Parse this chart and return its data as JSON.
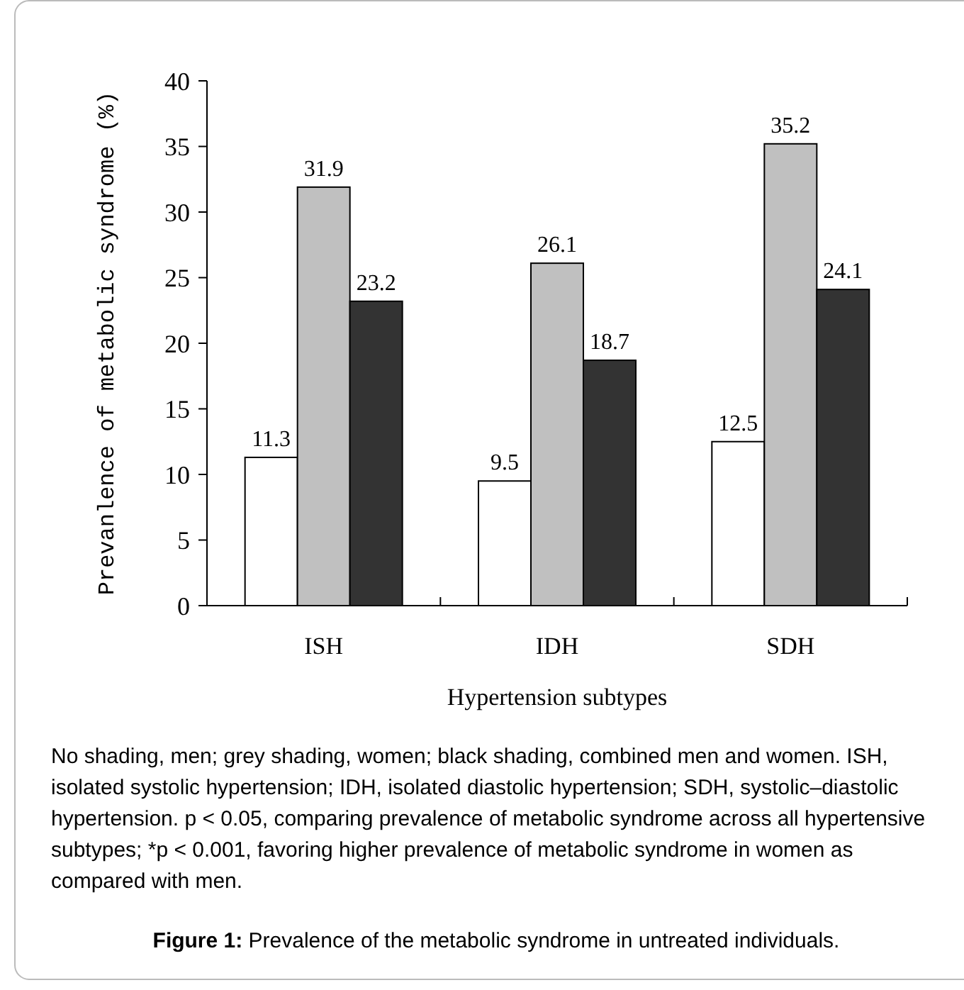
{
  "chart_data": {
    "type": "bar",
    "title": "Figure 1: Prevalence of the metabolic syndrome in untreated individuals.",
    "xlabel": "Hypertension subtypes",
    "ylabel": "Prevanlence of metabolic syndrome (%)",
    "categories": [
      "ISH",
      "IDH",
      "SDH"
    ],
    "series": [
      {
        "color": "#ffffff",
        "values": [
          11.3,
          9.5,
          12.5
        ]
      },
      {
        "color": "#c0c0c0",
        "values": [
          31.9,
          26.1,
          35.2
        ]
      },
      {
        "color": "#333333",
        "values": [
          23.2,
          18.7,
          24.1
        ]
      }
    ],
    "ylim": [
      0,
      40
    ],
    "yticks": [
      0,
      5,
      10,
      15,
      20,
      25,
      30,
      35,
      40
    ],
    "grid": false,
    "data_labels": true,
    "annotations": [
      "No shading, men; grey shading, women; black shading, combined men and women. ISH, isolated systolic hypertension; IDH, isolated diastolic hypertension; SDH, systolic–diastolic hypertension. p < 0.05, comparing prevalence of metabolic syndrome across all hypertensive subtypes; *p < 0.001, favoring higher prevalence of metabolic syndrome in women as compared with men."
    ]
  }
}
